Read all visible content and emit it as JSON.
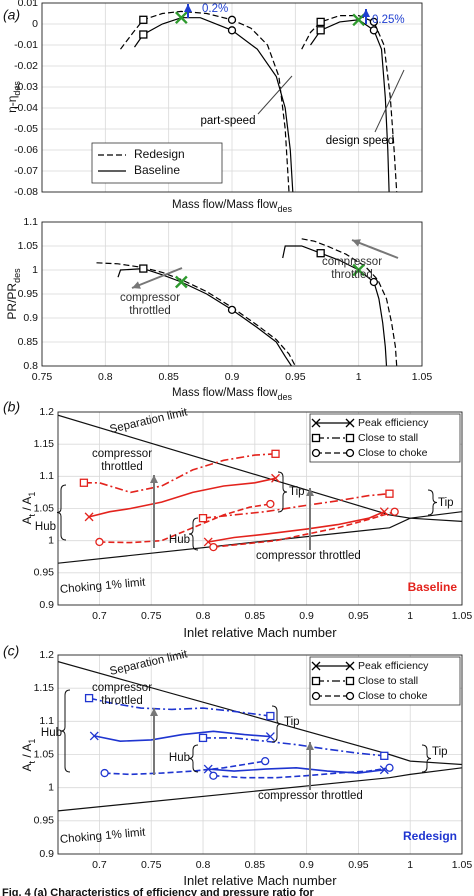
{
  "caption": "Fig. 4 (a) Characteristics of efficiency and pressure ratio for",
  "chart_data": [
    {
      "type": "line",
      "panel_label": "(a)",
      "ylabel": [
        "η-η",
        "des"
      ],
      "xlabel": [
        "Mass flow/Mass flow",
        "des"
      ],
      "xlim": [
        0.75,
        1.05
      ],
      "ylim": [
        -0.08,
        0.01
      ],
      "xticks": [
        0.75,
        0.8,
        0.85,
        0.9,
        0.95,
        1,
        1.05
      ],
      "xtick_labels": false,
      "yticks": [
        -0.08,
        -0.07,
        -0.06,
        -0.05,
        -0.04,
        -0.03,
        -0.02,
        -0.01,
        0,
        0.01
      ],
      "grid": true,
      "legend": "lower left",
      "series": [
        {
          "name": "Redesign",
          "dash": "dashed",
          "color": "#000000",
          "x": [
            0.812,
            0.822,
            0.83,
            0.845,
            0.86,
            0.88,
            0.9,
            0.915,
            0.928,
            0.937,
            0.942,
            0.945
          ],
          "y": [
            -0.012,
            -0.004,
            0.002,
            0.005,
            0.006,
            0.005,
            0.002,
            -0.002,
            -0.01,
            -0.025,
            -0.05,
            -0.08
          ]
        },
        {
          "name": "Baseline",
          "dash": "solid",
          "color": "#000000",
          "x": [
            0.823,
            0.83,
            0.845,
            0.86,
            0.875,
            0.9,
            0.92,
            0.935,
            0.942,
            0.946,
            0.948
          ],
          "y": [
            -0.011,
            -0.005,
            0.0,
            0.003,
            0.003,
            -0.003,
            -0.012,
            -0.025,
            -0.04,
            -0.06,
            -0.08
          ]
        },
        {
          "dash": "dashed",
          "color": "#000000",
          "x": [
            0.955,
            0.962,
            0.97,
            0.985,
            1.0,
            1.012,
            1.02,
            1.025,
            1.028,
            1.03
          ],
          "y": [
            -0.012,
            -0.004,
            0.001,
            0.004,
            0.004,
            0.001,
            -0.01,
            -0.035,
            -0.06,
            -0.08
          ]
        },
        {
          "dash": "solid",
          "color": "#000000",
          "x": [
            0.962,
            0.97,
            0.985,
            1.0,
            1.012,
            1.018,
            1.021,
            1.023,
            1.024
          ],
          "y": [
            -0.01,
            -0.003,
            0.001,
            0.002,
            -0.003,
            -0.012,
            -0.035,
            -0.06,
            -0.08
          ]
        }
      ],
      "points": [
        {
          "x": 0.83,
          "y": 0.002,
          "marker": "square",
          "color": "#000000"
        },
        {
          "x": 0.83,
          "y": -0.005,
          "marker": "square",
          "color": "#000000"
        },
        {
          "x": 0.9,
          "y": 0.002,
          "marker": "circle",
          "color": "#000000"
        },
        {
          "x": 0.9,
          "y": -0.003,
          "marker": "circle",
          "color": "#000000"
        },
        {
          "x": 0.86,
          "y": 0.003,
          "marker": "x",
          "color": "#2e9a2e"
        },
        {
          "x": 0.97,
          "y": 0.001,
          "marker": "square",
          "color": "#000000"
        },
        {
          "x": 0.97,
          "y": -0.003,
          "marker": "square",
          "color": "#000000"
        },
        {
          "x": 1.012,
          "y": 0.001,
          "marker": "circle",
          "color": "#000000"
        },
        {
          "x": 1.012,
          "y": -0.003,
          "marker": "circle",
          "color": "#000000"
        },
        {
          "x": 1.0,
          "y": 0.002,
          "marker": "x",
          "color": "#2e9a2e"
        }
      ],
      "annotations": [
        {
          "text": "0.2%",
          "color": "#1f3fd0"
        },
        {
          "text": "0.25%",
          "color": "#1f3fd0"
        },
        {
          "text": "part-speed",
          "color": "#000000"
        },
        {
          "text": "design speed",
          "color": "#000000"
        }
      ]
    },
    {
      "type": "line",
      "ylabel": [
        "PR/PR",
        "des"
      ],
      "xlabel": [
        "Mass flow/Mass flow",
        "des"
      ],
      "xlim": [
        0.75,
        1.05
      ],
      "ylim": [
        0.8,
        1.1
      ],
      "xticks": [
        0.75,
        0.8,
        0.85,
        0.9,
        0.95,
        1,
        1.05
      ],
      "yticks": [
        0.8,
        0.85,
        0.9,
        0.95,
        1,
        1.05,
        1.1
      ],
      "grid": true,
      "series": [
        {
          "dash": "dashed",
          "color": "#000000",
          "x": [
            0.793,
            0.81,
            0.83,
            0.845,
            0.86,
            0.88,
            0.9,
            0.92,
            0.935,
            0.945,
            0.95
          ],
          "y": [
            1.015,
            1.013,
            1.005,
            0.995,
            0.98,
            0.955,
            0.922,
            0.885,
            0.855,
            0.825,
            0.8
          ]
        },
        {
          "dash": "solid",
          "color": "#000000",
          "x": [
            0.81,
            0.812,
            0.83,
            0.845,
            0.86,
            0.88,
            0.9,
            0.92,
            0.935,
            0.942,
            0.947
          ],
          "y": [
            0.985,
            1.0,
            1.003,
            0.99,
            0.975,
            0.95,
            0.917,
            0.88,
            0.85,
            0.82,
            0.8
          ]
        },
        {
          "dash": "dashed",
          "color": "#000000",
          "x": [
            0.955,
            0.965,
            0.975,
            0.99,
            1.005,
            1.015,
            1.022,
            1.026,
            1.029,
            1.03
          ],
          "y": [
            1.065,
            1.06,
            1.05,
            1.033,
            1.008,
            0.98,
            0.94,
            0.89,
            0.84,
            0.8
          ]
        },
        {
          "dash": "solid",
          "color": "#000000",
          "x": [
            0.94,
            0.942,
            0.955,
            0.97,
            0.985,
            1.0,
            1.012,
            1.016,
            1.019,
            1.021,
            1.022
          ],
          "y": [
            1.025,
            1.05,
            1.05,
            1.035,
            1.02,
            1.0,
            0.975,
            0.94,
            0.89,
            0.84,
            0.8
          ]
        }
      ],
      "points": [
        {
          "x": 0.83,
          "y": 1.003,
          "marker": "square",
          "color": "#000000"
        },
        {
          "x": 0.86,
          "y": 0.975,
          "marker": "x",
          "color": "#2e9a2e"
        },
        {
          "x": 0.9,
          "y": 0.917,
          "marker": "circle",
          "color": "#000000"
        },
        {
          "x": 0.97,
          "y": 1.035,
          "marker": "square",
          "color": "#000000"
        },
        {
          "x": 1.0,
          "y": 1.0,
          "marker": "x",
          "color": "#2e9a2e"
        },
        {
          "x": 1.012,
          "y": 0.975,
          "marker": "circle",
          "color": "#000000"
        }
      ],
      "annotations": [
        {
          "text": [
            "compressor",
            "throttled"
          ],
          "color": "#333333"
        },
        {
          "text": [
            "compressor",
            "throttled"
          ],
          "color": "#333333"
        }
      ]
    },
    {
      "type": "line",
      "panel_label": "(b)",
      "ylabel": [
        "A",
        "t",
        " / A",
        "1"
      ],
      "xlabel": [
        "Inlet relative Mach number"
      ],
      "xlim": [
        0.66,
        1.05
      ],
      "ylim": [
        0.9,
        1.2
      ],
      "xticks": [
        0.7,
        0.75,
        0.8,
        0.85,
        0.9,
        0.95,
        1,
        1.05
      ],
      "yticks": [
        0.9,
        0.95,
        1,
        1.05,
        1.1,
        1.15,
        1.2
      ],
      "grid": true,
      "legend": "upper right",
      "limits": [
        {
          "label": "Separation limit",
          "x": [
            0.66,
            0.98,
            1.0,
            1.05
          ],
          "y": [
            1.195,
            1.04,
            1.035,
            1.03
          ]
        },
        {
          "label": "Choking 1% limit",
          "x": [
            0.66,
            0.98,
            1.0,
            1.05
          ],
          "y": [
            0.965,
            1.02,
            1.035,
            1.045
          ]
        }
      ],
      "series": [
        {
          "name": "Peak efficiency",
          "dash": "solid",
          "marker": "x",
          "color": "#e3231d",
          "x": [
            0.69,
            0.71,
            0.73,
            0.76,
            0.79,
            0.82,
            0.85,
            0.87
          ],
          "y": [
            1.037,
            1.045,
            1.05,
            1.06,
            1.075,
            1.085,
            1.09,
            1.097
          ]
        },
        {
          "dash": "solid",
          "marker": "x",
          "color": "#e3231d",
          "x": [
            0.805,
            0.83,
            0.86,
            0.9,
            0.93,
            0.96,
            0.975
          ],
          "y": [
            0.998,
            1.005,
            1.01,
            1.018,
            1.025,
            1.035,
            1.045
          ]
        },
        {
          "name": "Close to stall",
          "dash": "dashdot",
          "marker": "square",
          "color": "#e3231d",
          "x": [
            0.685,
            0.7,
            0.73,
            0.76,
            0.79,
            0.82,
            0.85,
            0.87
          ],
          "y": [
            1.09,
            1.09,
            1.075,
            1.085,
            1.11,
            1.125,
            1.133,
            1.135
          ]
        },
        {
          "dash": "dashdot",
          "marker": "square",
          "color": "#e3231d",
          "x": [
            0.8,
            0.83,
            0.86,
            0.9,
            0.93,
            0.96,
            0.98
          ],
          "y": [
            1.035,
            1.04,
            1.045,
            1.055,
            1.062,
            1.07,
            1.073
          ]
        },
        {
          "name": "Close to choke",
          "dash": "dashed",
          "marker": "circle",
          "color": "#e3231d",
          "x": [
            0.7,
            0.73,
            0.76,
            0.79,
            0.82,
            0.845,
            0.865
          ],
          "y": [
            0.998,
            0.997,
            1.0,
            1.02,
            1.04,
            1.052,
            1.057
          ]
        },
        {
          "dash": "dashed",
          "marker": "circle",
          "color": "#e3231d",
          "x": [
            0.81,
            0.84,
            0.87,
            0.9,
            0.93,
            0.96,
            0.985
          ],
          "y": [
            0.99,
            0.995,
            1.0,
            1.01,
            1.02,
            1.033,
            1.045
          ]
        }
      ],
      "annotations": [
        {
          "text": [
            "compressor",
            "throttled"
          ],
          "color": "#111111"
        },
        {
          "text": "compressor throttled",
          "color": "#111111"
        },
        {
          "text": "Tip",
          "color": "#111111"
        },
        {
          "text": "Tip",
          "color": "#111111"
        },
        {
          "text": "Hub",
          "color": "#111111"
        },
        {
          "text": "Hub",
          "color": "#111111"
        }
      ],
      "tag": "Baseline",
      "tag_color": "#e3231d"
    },
    {
      "type": "line",
      "panel_label": "(c)",
      "ylabel": [
        "A",
        "t",
        " / A",
        "1"
      ],
      "xlabel": [
        "Inlet relative Mach number"
      ],
      "xlim": [
        0.66,
        1.05
      ],
      "ylim": [
        0.9,
        1.2
      ],
      "xticks": [
        0.7,
        0.75,
        0.8,
        0.85,
        0.9,
        0.95,
        1,
        1.05
      ],
      "yticks": [
        0.9,
        0.95,
        1,
        1.05,
        1.1,
        1.15,
        1.2
      ],
      "grid": true,
      "legend": "upper right",
      "limits": [
        {
          "label": "Separation limit",
          "x": [
            0.66,
            0.98,
            1.0,
            1.05
          ],
          "y": [
            1.19,
            1.05,
            1.04,
            1.035
          ]
        },
        {
          "label": "Choking 1% limit",
          "x": [
            0.66,
            0.98,
            1.0,
            1.05
          ],
          "y": [
            0.965,
            1.015,
            1.02,
            1.03
          ]
        }
      ],
      "series": [
        {
          "name": "Peak efficiency",
          "dash": "solid",
          "marker": "x",
          "color": "#1f35d0",
          "x": [
            0.695,
            0.72,
            0.75,
            0.78,
            0.81,
            0.84,
            0.865
          ],
          "y": [
            1.078,
            1.07,
            1.072,
            1.08,
            1.085,
            1.08,
            1.077
          ]
        },
        {
          "dash": "solid",
          "marker": "x",
          "color": "#1f35d0",
          "x": [
            0.805,
            0.83,
            0.86,
            0.89,
            0.92,
            0.95,
            0.975
          ],
          "y": [
            1.028,
            1.025,
            1.028,
            1.03,
            1.025,
            1.022,
            1.027
          ]
        },
        {
          "name": "Close to stall",
          "dash": "dashdot",
          "marker": "square",
          "color": "#1f35d0",
          "x": [
            0.69,
            0.71,
            0.74,
            0.77,
            0.8,
            0.83,
            0.865
          ],
          "y": [
            1.135,
            1.128,
            1.12,
            1.118,
            1.12,
            1.115,
            1.108
          ]
        },
        {
          "dash": "dashdot",
          "marker": "square",
          "color": "#1f35d0",
          "x": [
            0.8,
            0.83,
            0.86,
            0.89,
            0.92,
            0.95,
            0.975
          ],
          "y": [
            1.075,
            1.075,
            1.07,
            1.065,
            1.058,
            1.052,
            1.048
          ]
        },
        {
          "name": "Close to choke",
          "dash": "dashed",
          "marker": "circle",
          "color": "#1f35d0",
          "x": [
            0.705,
            0.73,
            0.76,
            0.79,
            0.82,
            0.86
          ],
          "y": [
            1.022,
            1.02,
            1.022,
            1.025,
            1.03,
            1.04
          ]
        },
        {
          "dash": "dashed",
          "marker": "circle",
          "color": "#1f35d0",
          "x": [
            0.81,
            0.84,
            0.87,
            0.9,
            0.93,
            0.96,
            0.98
          ],
          "y": [
            1.018,
            1.015,
            1.015,
            1.018,
            1.022,
            1.025,
            1.03
          ]
        }
      ],
      "annotations": [
        {
          "text": [
            "compressor",
            "throttled"
          ],
          "color": "#111111"
        },
        {
          "text": "compressor throttled",
          "color": "#111111"
        },
        {
          "text": "Tip",
          "color": "#111111"
        },
        {
          "text": "Tip",
          "color": "#111111"
        },
        {
          "text": "Hub",
          "color": "#111111"
        },
        {
          "text": "Hub",
          "color": "#111111"
        }
      ],
      "tag": "Redesign",
      "tag_color": "#1f35d0"
    }
  ]
}
